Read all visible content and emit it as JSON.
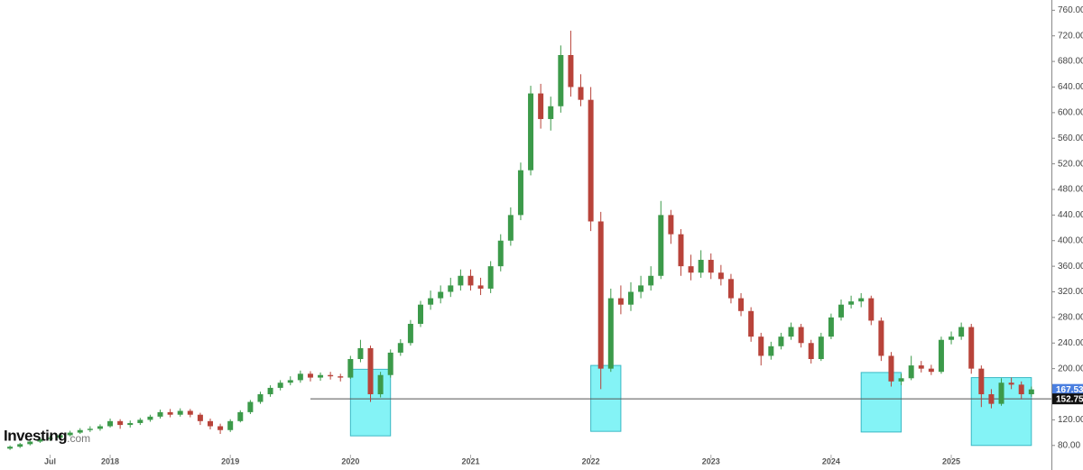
{
  "chart_data": {
    "type": "candlestick",
    "x": [
      "2017-03",
      "2017-04",
      "2017-05",
      "2017-06",
      "2017-07",
      "2017-08",
      "2017-09",
      "2017-10",
      "2017-11",
      "2017-12",
      "2018-01",
      "2018-02",
      "2018-03",
      "2018-04",
      "2018-05",
      "2018-06",
      "2018-07",
      "2018-08",
      "2018-09",
      "2018-10",
      "2018-11",
      "2018-12",
      "2019-01",
      "2019-02",
      "2019-03",
      "2019-04",
      "2019-05",
      "2019-06",
      "2019-07",
      "2019-08",
      "2019-09",
      "2019-10",
      "2019-11",
      "2019-12",
      "2020-01",
      "2020-02",
      "2020-03",
      "2020-04",
      "2020-05",
      "2020-06",
      "2020-07",
      "2020-08",
      "2020-09",
      "2020-10",
      "2020-11",
      "2020-12",
      "2021-01",
      "2021-02",
      "2021-03",
      "2021-04",
      "2021-05",
      "2021-06",
      "2021-07",
      "2021-08",
      "2021-09",
      "2021-10",
      "2021-11",
      "2021-12",
      "2022-01",
      "2022-02",
      "2022-03",
      "2022-04",
      "2022-05",
      "2022-06",
      "2022-07",
      "2022-08",
      "2022-09",
      "2022-10",
      "2022-11",
      "2022-12",
      "2023-01",
      "2023-02",
      "2023-03",
      "2023-04",
      "2023-05",
      "2023-06",
      "2023-07",
      "2023-08",
      "2023-09",
      "2023-10",
      "2023-11",
      "2023-12",
      "2024-01",
      "2024-02",
      "2024-03",
      "2024-04",
      "2024-05",
      "2024-06",
      "2024-07",
      "2024-08",
      "2024-09",
      "2024-10",
      "2024-11",
      "2024-12",
      "2025-01",
      "2025-02",
      "2025-03",
      "2025-04",
      "2025-05",
      "2025-06",
      "2025-07",
      "2025-08",
      "2025-09"
    ],
    "open": [
      75,
      78,
      82,
      86,
      90,
      92,
      96,
      100,
      104,
      106,
      110,
      118,
      112,
      115,
      120,
      125,
      132,
      128,
      134,
      128,
      118,
      110,
      104,
      118,
      132,
      148,
      160,
      170,
      178,
      182,
      192,
      186,
      190,
      188,
      186,
      215,
      232,
      160,
      190,
      225,
      240,
      270,
      300,
      310,
      320,
      330,
      345,
      330,
      325,
      360,
      400,
      440,
      510,
      630,
      590,
      610,
      690,
      640,
      620,
      430,
      200,
      310,
      300,
      320,
      330,
      345,
      440,
      410,
      360,
      350,
      370,
      350,
      340,
      310,
      290,
      250,
      220,
      235,
      250,
      265,
      240,
      215,
      250,
      280,
      300,
      305,
      310,
      275,
      220,
      180,
      185,
      205,
      200,
      195,
      245,
      250,
      265,
      200,
      160,
      145,
      178,
      175,
      160
    ],
    "high": [
      80,
      84,
      88,
      93,
      95,
      99,
      103,
      107,
      110,
      113,
      122,
      121,
      119,
      123,
      128,
      136,
      137,
      138,
      137,
      131,
      122,
      114,
      121,
      135,
      151,
      164,
      174,
      182,
      188,
      197,
      196,
      194,
      195,
      192,
      220,
      245,
      236,
      195,
      230,
      246,
      276,
      306,
      322,
      330,
      342,
      355,
      355,
      342,
      368,
      410,
      452,
      522,
      642,
      645,
      625,
      705,
      728,
      660,
      640,
      445,
      325,
      330,
      335,
      345,
      360,
      462,
      448,
      418,
      378,
      385,
      380,
      362,
      348,
      318,
      296,
      256,
      242,
      256,
      272,
      270,
      245,
      256,
      286,
      308,
      314,
      318,
      314,
      280,
      226,
      192,
      220,
      212,
      206,
      250,
      258,
      272,
      270,
      205,
      168,
      185,
      186,
      180,
      172
    ],
    "low": [
      73,
      76,
      80,
      84,
      87,
      90,
      94,
      98,
      101,
      103,
      108,
      106,
      108,
      112,
      117,
      122,
      124,
      125,
      124,
      112,
      105,
      98,
      101,
      116,
      129,
      145,
      156,
      166,
      174,
      178,
      180,
      181,
      183,
      180,
      184,
      210,
      148,
      155,
      186,
      220,
      236,
      265,
      292,
      302,
      312,
      322,
      322,
      315,
      318,
      352,
      392,
      432,
      502,
      575,
      572,
      600,
      625,
      610,
      415,
      168,
      195,
      285,
      290,
      310,
      322,
      340,
      395,
      345,
      338,
      342,
      340,
      330,
      302,
      282,
      242,
      205,
      214,
      230,
      245,
      233,
      208,
      212,
      246,
      275,
      294,
      296,
      268,
      212,
      172,
      174,
      182,
      194,
      190,
      192,
      238,
      245,
      192,
      140,
      138,
      142,
      168,
      152,
      156
    ],
    "close": [
      78,
      82,
      86,
      90,
      92,
      96,
      100,
      104,
      106,
      110,
      118,
      112,
      115,
      120,
      125,
      132,
      128,
      134,
      128,
      118,
      110,
      104,
      118,
      132,
      148,
      160,
      170,
      178,
      182,
      192,
      186,
      190,
      188,
      186,
      215,
      232,
      160,
      190,
      225,
      240,
      270,
      300,
      310,
      320,
      330,
      345,
      330,
      325,
      360,
      400,
      440,
      510,
      630,
      590,
      610,
      690,
      640,
      620,
      430,
      200,
      310,
      300,
      320,
      330,
      345,
      440,
      410,
      360,
      350,
      370,
      350,
      340,
      310,
      290,
      250,
      220,
      235,
      250,
      265,
      240,
      215,
      250,
      280,
      300,
      305,
      310,
      275,
      220,
      180,
      185,
      205,
      200,
      195,
      245,
      250,
      265,
      200,
      160,
      145,
      178,
      175,
      160,
      167.53
    ],
    "up_color": "#3c9a4a",
    "down_color": "#b8433a",
    "xlim": [
      "2017-02",
      "2025-11"
    ],
    "xticks": [
      {
        "value": "2017-07",
        "label": "Jul"
      },
      {
        "value": "2018-01",
        "label": "2018"
      },
      {
        "value": "2019-01",
        "label": "2019"
      },
      {
        "value": "2020-01",
        "label": "2020"
      },
      {
        "value": "2021-01",
        "label": "2021"
      },
      {
        "value": "2022-01",
        "label": "2022"
      },
      {
        "value": "2023-01",
        "label": "2023"
      },
      {
        "value": "2024-01",
        "label": "2024"
      },
      {
        "value": "2025-01",
        "label": "2025"
      }
    ],
    "ylim": [
      67,
      776
    ],
    "yticks": [
      {
        "value": 80,
        "label": "80.00"
      },
      {
        "value": 120,
        "label": "120.00"
      },
      {
        "value": 160,
        "label": "160.00"
      },
      {
        "value": 200,
        "label": "200.00"
      },
      {
        "value": 240,
        "label": "240.00"
      },
      {
        "value": 280,
        "label": "280.00"
      },
      {
        "value": 320,
        "label": "320.00"
      },
      {
        "value": 360,
        "label": "360.00"
      },
      {
        "value": 400,
        "label": "400.00"
      },
      {
        "value": 440,
        "label": "440.00"
      },
      {
        "value": 480,
        "label": "480.00"
      },
      {
        "value": 520,
        "label": "520.00"
      },
      {
        "value": 560,
        "label": "560.00"
      },
      {
        "value": 600,
        "label": "600.00"
      },
      {
        "value": 640,
        "label": "640.00"
      },
      {
        "value": 680,
        "label": "680.00"
      },
      {
        "value": 720,
        "label": "720.00"
      },
      {
        "value": 760,
        "label": "760.00"
      }
    ],
    "hline": {
      "value": 152.75,
      "x_start": "2019-09",
      "color": "#555555"
    },
    "price_labels": [
      {
        "value": 167.53,
        "color": "#4a7fe0"
      },
      {
        "value": 152.75,
        "color": "#111111"
      }
    ],
    "highlights": [
      {
        "x": [
          "2020-01",
          "2020-05"
        ],
        "y": [
          95,
          199
        ]
      },
      {
        "x": [
          "2022-01",
          "2022-04"
        ],
        "y": [
          102,
          205
        ]
      },
      {
        "x": [
          "2024-04",
          "2024-08"
        ],
        "y": [
          101,
          194
        ]
      },
      {
        "x": [
          "2025-03",
          "2025-09"
        ],
        "y": [
          80,
          186
        ]
      }
    ],
    "highlight_color": "#84f3f6",
    "watermark": "Investing",
    "watermark_suffix": ".com"
  }
}
